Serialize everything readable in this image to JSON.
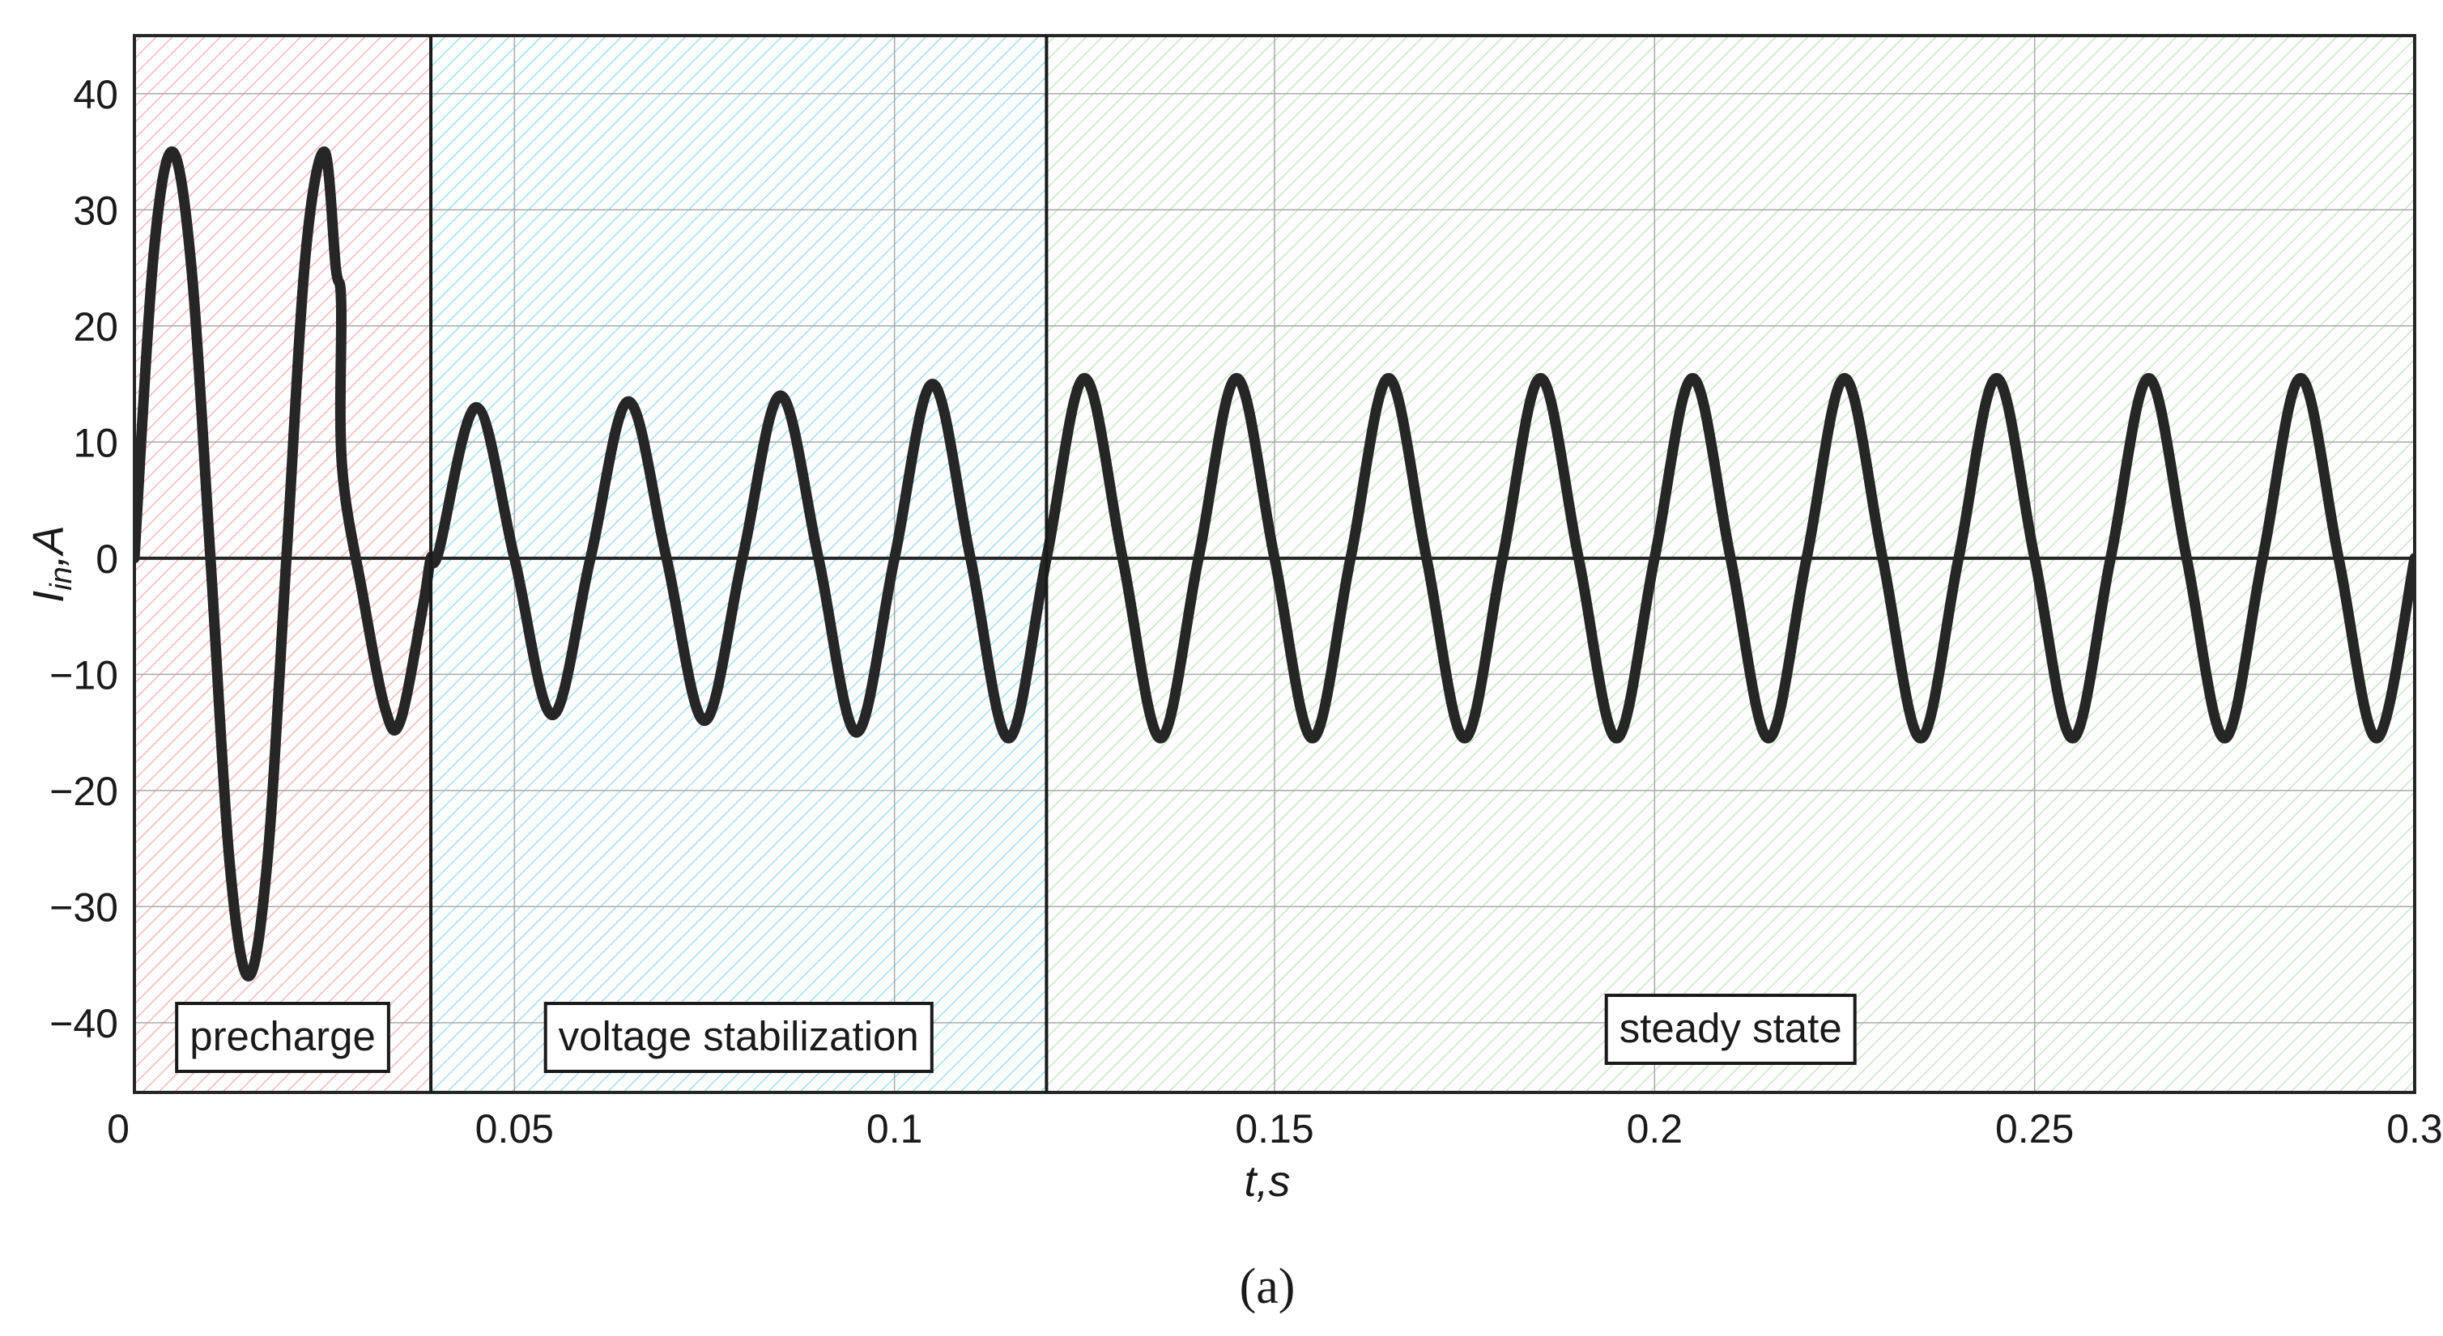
{
  "chart_data": {
    "type": "line",
    "xlabel_main": "t",
    "xlabel_unit": "s",
    "ylabel_main": "I",
    "ylabel_sub": "in",
    "ylabel_unit": "A",
    "xlim": [
      0,
      0.3
    ],
    "ylim": [
      -46,
      45
    ],
    "grid": true,
    "xticks": [
      0,
      0.05,
      0.1,
      0.15,
      0.2,
      0.25,
      0.3
    ],
    "xtick_labels": [
      "0",
      "0.05",
      "0.1",
      "0.15",
      "0.2",
      "0.25",
      "0.3"
    ],
    "yticks": [
      40,
      30,
      20,
      10,
      0,
      -10,
      -20,
      -30,
      -40
    ],
    "ytick_labels": [
      "40",
      "30",
      "20",
      "10",
      "0",
      "−10",
      "−20",
      "−30",
      "−40"
    ],
    "regions": [
      {
        "label": "precharge",
        "x_start": 0,
        "x_end": 0.039,
        "color": "#f4a0aa"
      },
      {
        "label": "voltage stabilization",
        "x_start": 0.039,
        "x_end": 0.12,
        "color": "#7fd7e6"
      },
      {
        "label": "steady state",
        "x_start": 0.12,
        "x_end": 0.3,
        "color": "#b9dcb5"
      }
    ],
    "series": [
      {
        "color": "#262626",
        "x": [
          0,
          0.0025,
          0.005,
          0.0075,
          0.01,
          0.0125,
          0.015,
          0.0175,
          0.02,
          0.0225,
          0.025,
          0.0265,
          0.0272,
          0.0273,
          0.03,
          0.033,
          0.035,
          0.038,
          0.039,
          0.04,
          0.045,
          0.05,
          0.055,
          0.06,
          0.065,
          0.07,
          0.075,
          0.08,
          0.085,
          0.09,
          0.095,
          0.1,
          0.105,
          0.11,
          0.115,
          0.12,
          0.125,
          0.13,
          0.135,
          0.14,
          0.145,
          0.15,
          0.155,
          0.16,
          0.165,
          0.17,
          0.175,
          0.18,
          0.185,
          0.19,
          0.195,
          0.2,
          0.205,
          0.21,
          0.215,
          0.22,
          0.225,
          0.23,
          0.235,
          0.24,
          0.245,
          0.25,
          0.255,
          0.26,
          0.265,
          0.27,
          0.275,
          0.28,
          0.285,
          0.29,
          0.295,
          0.3
        ],
        "y": [
          0,
          26,
          35,
          25,
          0,
          -26,
          -36,
          -26,
          0,
          26,
          35,
          25,
          22,
          8,
          -3,
          -13,
          -14,
          -4,
          0,
          0.5,
          13,
          0,
          -13.5,
          0,
          13.5,
          0,
          -14,
          0,
          14,
          0,
          -15,
          0,
          15,
          0,
          -15.5,
          0,
          15.5,
          0,
          -15.5,
          0,
          15.5,
          0,
          -15.5,
          0,
          15.5,
          0,
          -15.5,
          0,
          15.5,
          0,
          -15.5,
          0,
          15.5,
          0,
          -15.5,
          0,
          15.5,
          0,
          -15.5,
          0,
          15.5,
          0,
          -15.5,
          0,
          15.5,
          0,
          -15.5,
          0,
          15.5,
          0,
          -15.5,
          0
        ]
      }
    ]
  },
  "caption": "(a)"
}
